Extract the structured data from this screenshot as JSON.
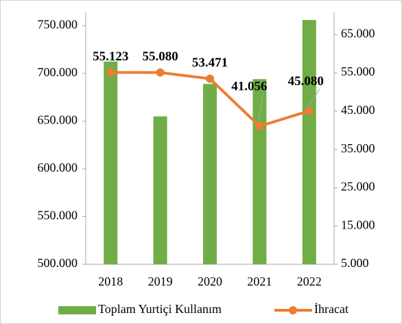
{
  "chart_data": {
    "type": "bar-line",
    "categories": [
      "2018",
      "2019",
      "2020",
      "2021",
      "2022"
    ],
    "series": [
      {
        "name": "Toplam Yurtiçi Kullanım",
        "type": "bar",
        "color": "#70ad47",
        "values": [
          712500,
          655000,
          689000,
          694000,
          756000
        ]
      },
      {
        "name": "İhracat",
        "type": "line",
        "axis": "y2",
        "color": "#ed7d31",
        "values": [
          55123,
          55080,
          53471,
          41056,
          45080
        ],
        "value_labels": [
          "55.123",
          "55.080",
          "53.471",
          "41.056",
          "45.080"
        ]
      }
    ],
    "ylim": [
      500000,
      764000
    ],
    "yticks": [
      {
        "value": 500000,
        "label": "500.000"
      },
      {
        "value": 550000,
        "label": "550.000"
      },
      {
        "value": 600000,
        "label": "600.000"
      },
      {
        "value": 650000,
        "label": "650.000"
      },
      {
        "value": 700000,
        "label": "700.000"
      },
      {
        "value": 750000,
        "label": "750.000"
      }
    ],
    "y2lim": [
      5000,
      70800
    ],
    "y2ticks": [
      {
        "value": 5000,
        "label": "5.000"
      },
      {
        "value": 15000,
        "label": "15.000"
      },
      {
        "value": 25000,
        "label": "25.000"
      },
      {
        "value": 35000,
        "label": "35.000"
      },
      {
        "value": 45000,
        "label": "45.000"
      },
      {
        "value": 55000,
        "label": "55.000"
      },
      {
        "value": 65000,
        "label": "65.000"
      }
    ],
    "legend": "bottom"
  }
}
